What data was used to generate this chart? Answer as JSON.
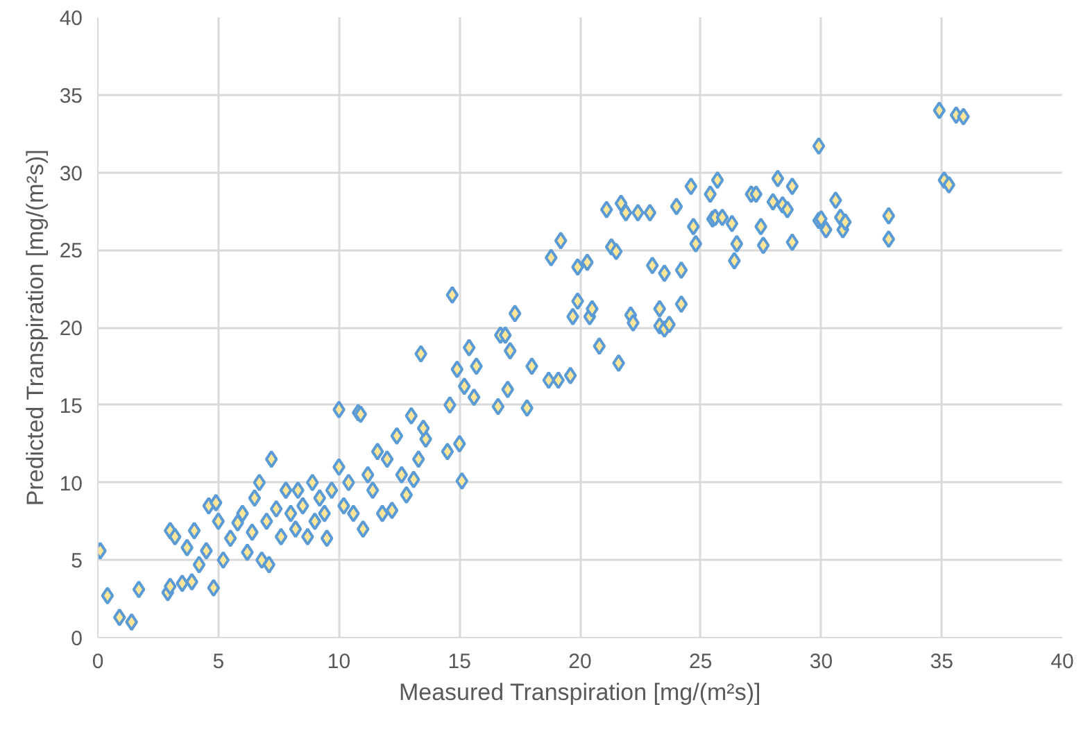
{
  "chart_data": {
    "type": "scatter",
    "xlabel": "Measured Transpiration [mg/(m²s)]",
    "ylabel": "Predicted Transpiration [mg/(m²s)]",
    "xlim": [
      0,
      40
    ],
    "ylim": [
      0,
      40
    ],
    "xticks": [
      0,
      5,
      10,
      15,
      20,
      25,
      30,
      35,
      40
    ],
    "yticks": [
      0,
      5,
      10,
      15,
      20,
      25,
      30,
      35,
      40
    ],
    "grid": true,
    "marker": "diamond",
    "series": [
      {
        "color": "#5b9bd5",
        "x": [
          0.1,
          0.4,
          0.9,
          1.4,
          1.7,
          2.9,
          3.0,
          3.0,
          3.2,
          3.5,
          3.7,
          3.9,
          4.0,
          4.2,
          4.5,
          4.6,
          4.8,
          4.9,
          5.0,
          5.2,
          5.5,
          5.8,
          6.0,
          6.2,
          6.4,
          6.5,
          6.7,
          6.8,
          7.0,
          7.1,
          7.2,
          7.4,
          7.6,
          7.8,
          8.0,
          8.2,
          8.3,
          8.5,
          8.7,
          8.9,
          9.0,
          9.2,
          9.4,
          9.5,
          9.7,
          10.0,
          10.0,
          10.2,
          10.4,
          10.6,
          10.8,
          10.9,
          11.0,
          11.2,
          11.4,
          11.6,
          11.8,
          12.0,
          12.2,
          12.4,
          12.6,
          12.8,
          13.0,
          13.1,
          13.3,
          13.4,
          13.6,
          13.5,
          14.5,
          14.6,
          14.7,
          14.9,
          15.0,
          15.1,
          15.2,
          15.4,
          15.6,
          15.7,
          16.6,
          16.7,
          16.9,
          17.1,
          17.0,
          17.3,
          17.8,
          18.0,
          18.7,
          18.8,
          19.1,
          19.2,
          19.6,
          19.7,
          19.9,
          19.9,
          20.3,
          20.4,
          20.5,
          20.8,
          21.1,
          21.3,
          21.5,
          21.6,
          21.7,
          21.9,
          22.1,
          22.2,
          22.4,
          22.9,
          23.0,
          23.3,
          23.3,
          23.5,
          23.5,
          23.7,
          24.0,
          24.2,
          24.2,
          24.6,
          24.7,
          24.8,
          25.4,
          25.5,
          25.7,
          25.6,
          25.9,
          26.3,
          26.4,
          26.5,
          27.1,
          27.3,
          27.5,
          27.6,
          28.0,
          28.2,
          28.4,
          28.6,
          28.8,
          28.8,
          29.9,
          29.9,
          30.0,
          30.2,
          30.6,
          30.8,
          30.9,
          31.0,
          32.8,
          32.8,
          34.9,
          35.1,
          35.3,
          35.6,
          35.9
        ],
        "values": [
          5.6,
          2.7,
          1.3,
          1.0,
          3.1,
          2.9,
          3.3,
          6.9,
          6.5,
          3.5,
          5.8,
          3.6,
          6.9,
          4.7,
          5.6,
          8.5,
          3.2,
          8.7,
          7.5,
          5.0,
          6.4,
          7.4,
          8.0,
          5.5,
          6.8,
          9.0,
          10.0,
          5.0,
          7.5,
          4.7,
          11.5,
          8.3,
          6.5,
          9.5,
          8.0,
          7.0,
          9.5,
          8.5,
          6.5,
          10.0,
          7.5,
          9.0,
          8.0,
          6.4,
          9.5,
          14.7,
          11.0,
          8.5,
          10.0,
          8.0,
          14.5,
          14.4,
          7.0,
          10.5,
          9.5,
          12.0,
          8.0,
          11.5,
          8.2,
          13.0,
          10.5,
          9.2,
          14.3,
          10.2,
          11.5,
          18.3,
          12.8,
          13.5,
          12.0,
          15.0,
          22.1,
          17.3,
          12.5,
          10.1,
          16.2,
          18.7,
          15.5,
          17.5,
          14.9,
          19.5,
          19.5,
          18.5,
          16.0,
          20.9,
          14.8,
          17.5,
          16.6,
          24.5,
          16.6,
          25.6,
          16.9,
          20.7,
          21.7,
          23.9,
          24.2,
          20.7,
          21.2,
          18.8,
          27.6,
          25.2,
          24.9,
          17.7,
          28.0,
          27.4,
          20.8,
          20.3,
          27.4,
          27.4,
          24.0,
          21.2,
          20.1,
          23.5,
          19.9,
          20.2,
          27.8,
          23.7,
          21.5,
          29.1,
          26.5,
          25.4,
          28.6,
          27.0,
          29.5,
          27.1,
          27.1,
          26.7,
          24.3,
          25.4,
          28.6,
          28.6,
          26.5,
          25.3,
          28.1,
          29.6,
          27.9,
          27.6,
          25.5,
          29.1,
          31.7,
          26.9,
          27.0,
          26.3,
          28.2,
          27.1,
          26.3,
          26.8,
          27.2,
          25.7,
          34.0,
          29.5,
          29.2,
          33.7,
          33.6
        ]
      }
    ]
  }
}
